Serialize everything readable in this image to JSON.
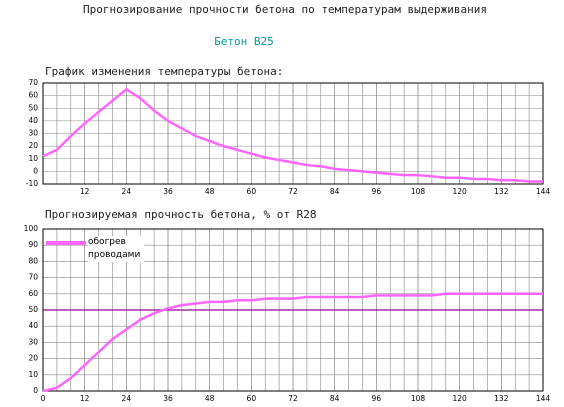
{
  "header": {
    "title": "Прогнозирование прочности бетона по температурам выдерживания",
    "subtitle": "Бетон В25"
  },
  "chart_data": [
    {
      "type": "line",
      "title": "График изменения температуры бетона:",
      "x": [
        0,
        4,
        8,
        12,
        16,
        20,
        24,
        28,
        32,
        36,
        40,
        44,
        48,
        52,
        56,
        60,
        64,
        68,
        72,
        76,
        80,
        84,
        88,
        92,
        96,
        100,
        104,
        108,
        112,
        116,
        120,
        124,
        128,
        132,
        136,
        140,
        144
      ],
      "series": [
        {
          "color": "#ff66ff",
          "values": [
            12,
            17,
            28,
            38,
            47,
            56,
            65,
            58,
            48,
            40,
            34,
            28,
            24,
            20,
            17,
            14,
            11,
            9,
            7,
            5,
            4,
            2,
            1,
            0,
            -1,
            -2,
            -3,
            -3,
            -4,
            -5,
            -5,
            -6,
            -6,
            -7,
            -7,
            -8,
            -8
          ]
        }
      ],
      "xlim": [
        0,
        144
      ],
      "xticks": [
        12,
        24,
        36,
        48,
        60,
        72,
        84,
        96,
        108,
        120,
        132,
        144
      ],
      "ylim": [
        -10,
        70
      ],
      "yticks": [
        -10,
        0,
        10,
        20,
        30,
        40,
        50,
        60,
        70
      ],
      "grid": true
    },
    {
      "type": "line",
      "title": "Прогнозируемая прочность бетона, % от R28",
      "x": [
        0,
        4,
        8,
        12,
        16,
        20,
        24,
        28,
        32,
        36,
        40,
        44,
        48,
        52,
        56,
        60,
        64,
        68,
        72,
        76,
        80,
        84,
        88,
        92,
        96,
        100,
        104,
        108,
        112,
        116,
        120,
        124,
        128,
        132,
        136,
        140,
        144
      ],
      "series": [
        {
          "name": "обогрев проводами",
          "color": "#ff66ff",
          "values": [
            0,
            2,
            8,
            16,
            24,
            32,
            38,
            44,
            48,
            51,
            53,
            54,
            55,
            55,
            56,
            56,
            57,
            57,
            57,
            58,
            58,
            58,
            58,
            58,
            59,
            59,
            59,
            59,
            59,
            60,
            60,
            60,
            60,
            60,
            60,
            60,
            60
          ]
        }
      ],
      "hline": {
        "value": 50,
        "color": "#990099"
      },
      "xlim": [
        0,
        144
      ],
      "xticks": [
        0,
        12,
        24,
        36,
        48,
        60,
        72,
        84,
        96,
        108,
        120,
        132,
        144
      ],
      "ylim": [
        0,
        100
      ],
      "yticks": [
        0,
        10,
        20,
        30,
        40,
        50,
        60,
        70,
        80,
        90,
        100
      ],
      "grid": true,
      "legend": "upper left"
    }
  ]
}
